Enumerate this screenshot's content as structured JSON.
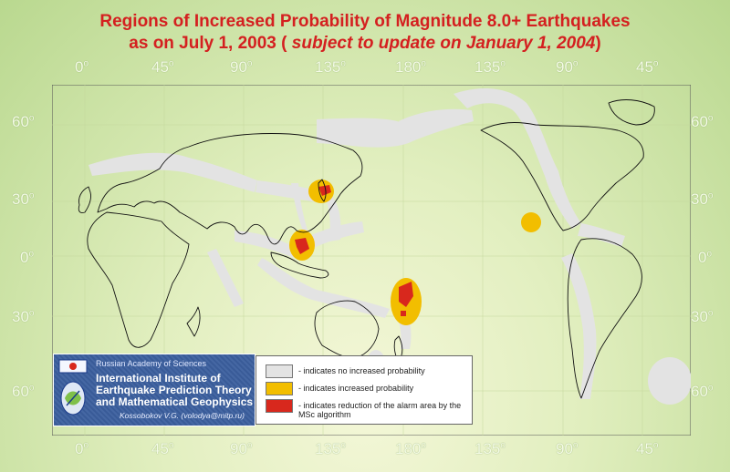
{
  "title": {
    "line1": "Regions of Increased Probability of Magnitude 8.0+ Earthquakes",
    "line2_a": "as on July 1, 2003 ( ",
    "line2_b": "subject to update on January 1, 2004",
    "line2_c": ")"
  },
  "longitude_ticks": [
    "0",
    "45",
    "90",
    "135",
    "180",
    "135",
    "90",
    "45"
  ],
  "latitude_ticks": [
    "60",
    "30",
    "0",
    "30",
    "60"
  ],
  "degree_symbol": "o",
  "institute": {
    "academy": "Russian Academy of Sciences",
    "name": "International Institute of Earthquake Prediction Theory and Mathematical Geophysics",
    "author": "Kossobokov V.G. (volodya@mitp.ru)"
  },
  "legend": [
    {
      "color": "#e3e3e3",
      "label": "- indicates no increased probability"
    },
    {
      "color": "#f2be00",
      "label": "- indicates increased probability"
    },
    {
      "color": "#d8281d",
      "label": "- indicates reduction of the alarm area by the MSc algorithm"
    }
  ],
  "colors": {
    "no_increase": "#e3e3e3",
    "increased": "#f2be00",
    "reduced": "#d8281d",
    "title": "#d42020"
  }
}
